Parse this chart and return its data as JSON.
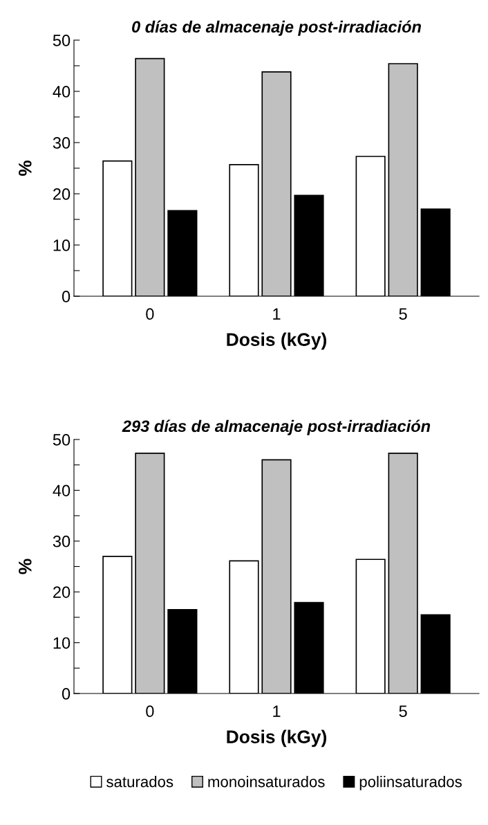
{
  "chart_data": [
    {
      "type": "bar",
      "title": "0 días de almacenaje post-irradiación",
      "xlabel": "Dosis (kGy)",
      "ylabel": "%",
      "categories": [
        "0",
        "1",
        "5"
      ],
      "series": [
        {
          "color": "#ffffff",
          "values": [
            26.4,
            25.7,
            27.3
          ]
        },
        {
          "color": "#c0c0c0",
          "values": [
            46.4,
            43.8,
            45.4
          ]
        },
        {
          "color": "#000000",
          "values": [
            16.7,
            19.7,
            17.0
          ]
        }
      ],
      "ylim": [
        0,
        50
      ],
      "yticks": [
        0,
        {
          "value": 5,
          "label": null
        },
        10,
        {
          "value": 15,
          "label": null
        },
        20,
        {
          "value": 25,
          "label": null
        },
        30,
        {
          "value": 35,
          "label": null
        },
        40,
        {
          "value": 45,
          "label": null
        },
        50
      ],
      "grid": false,
      "legend": false
    },
    {
      "type": "bar",
      "title": "293 días de almacenaje post-irradiación",
      "xlabel": "Dosis (kGy)",
      "ylabel": "%",
      "categories": [
        "0",
        "1",
        "5"
      ],
      "series": [
        {
          "name": "saturados",
          "color": "#ffffff",
          "values": [
            27.0,
            26.1,
            26.4
          ]
        },
        {
          "name": "monoinsaturados",
          "color": "#c0c0c0",
          "values": [
            47.3,
            46.0,
            47.3
          ]
        },
        {
          "name": "poliinsaturados",
          "color": "#000000",
          "values": [
            16.5,
            17.9,
            15.5
          ]
        }
      ],
      "ylim": [
        0,
        50
      ],
      "yticks": [
        0,
        {
          "value": 5,
          "label": null
        },
        10,
        {
          "value": 15,
          "label": null
        },
        20,
        {
          "value": 25,
          "label": null
        },
        30,
        {
          "value": 35,
          "label": null
        },
        40,
        {
          "value": 45,
          "label": null
        },
        50
      ],
      "grid": false,
      "legend": "bottom"
    }
  ]
}
